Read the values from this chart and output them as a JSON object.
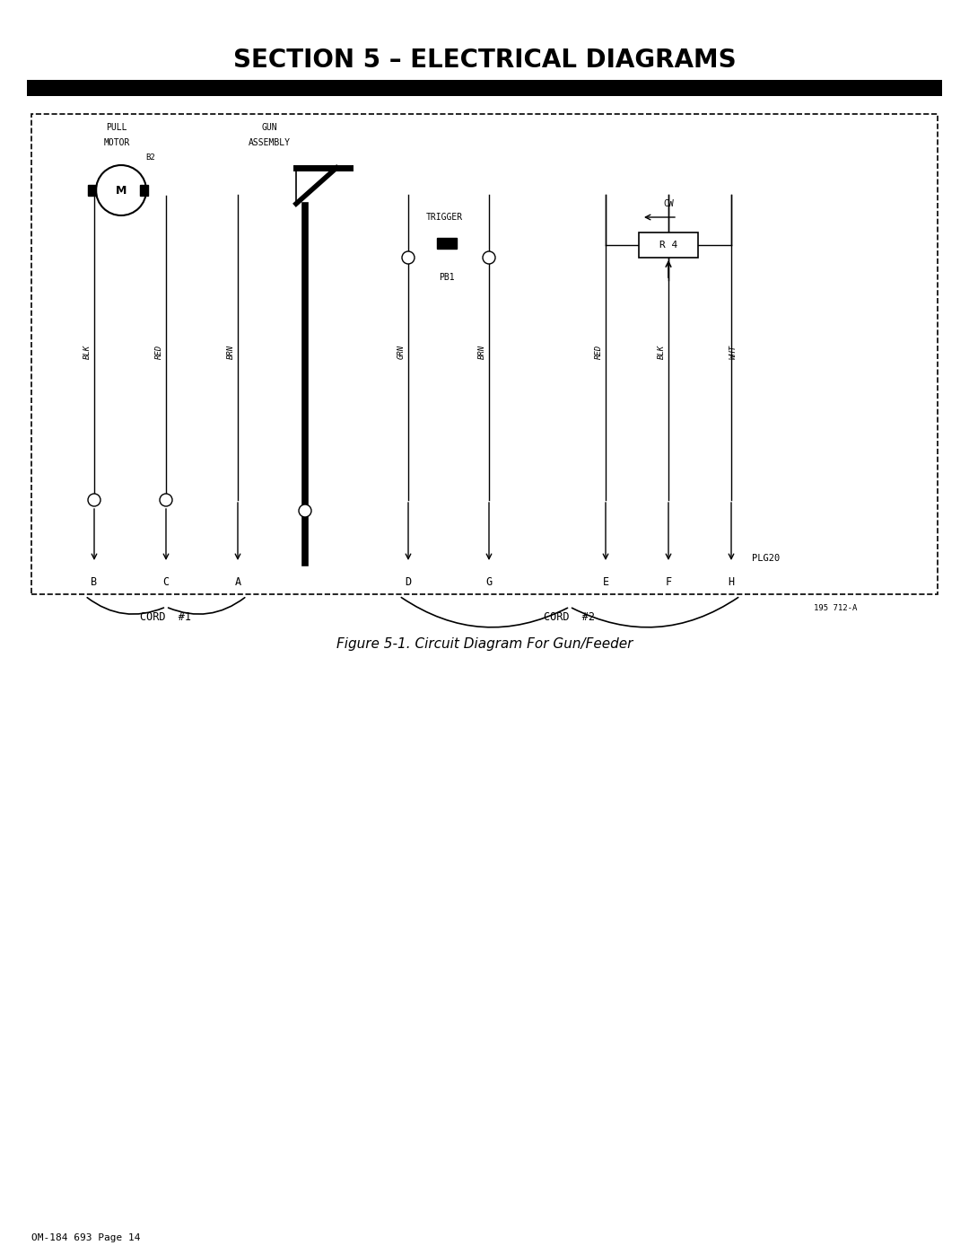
{
  "title": "SECTION 5 – ELECTRICAL DIAGRAMS",
  "figure_caption": "Figure 5-1. Circuit Diagram For Gun/Feeder",
  "page_label": "OM-184 693 Page 14",
  "ref_num": "195 712-A",
  "bg_color": "#ffffff",
  "title_fontsize": 20,
  "caption_fontsize": 11
}
